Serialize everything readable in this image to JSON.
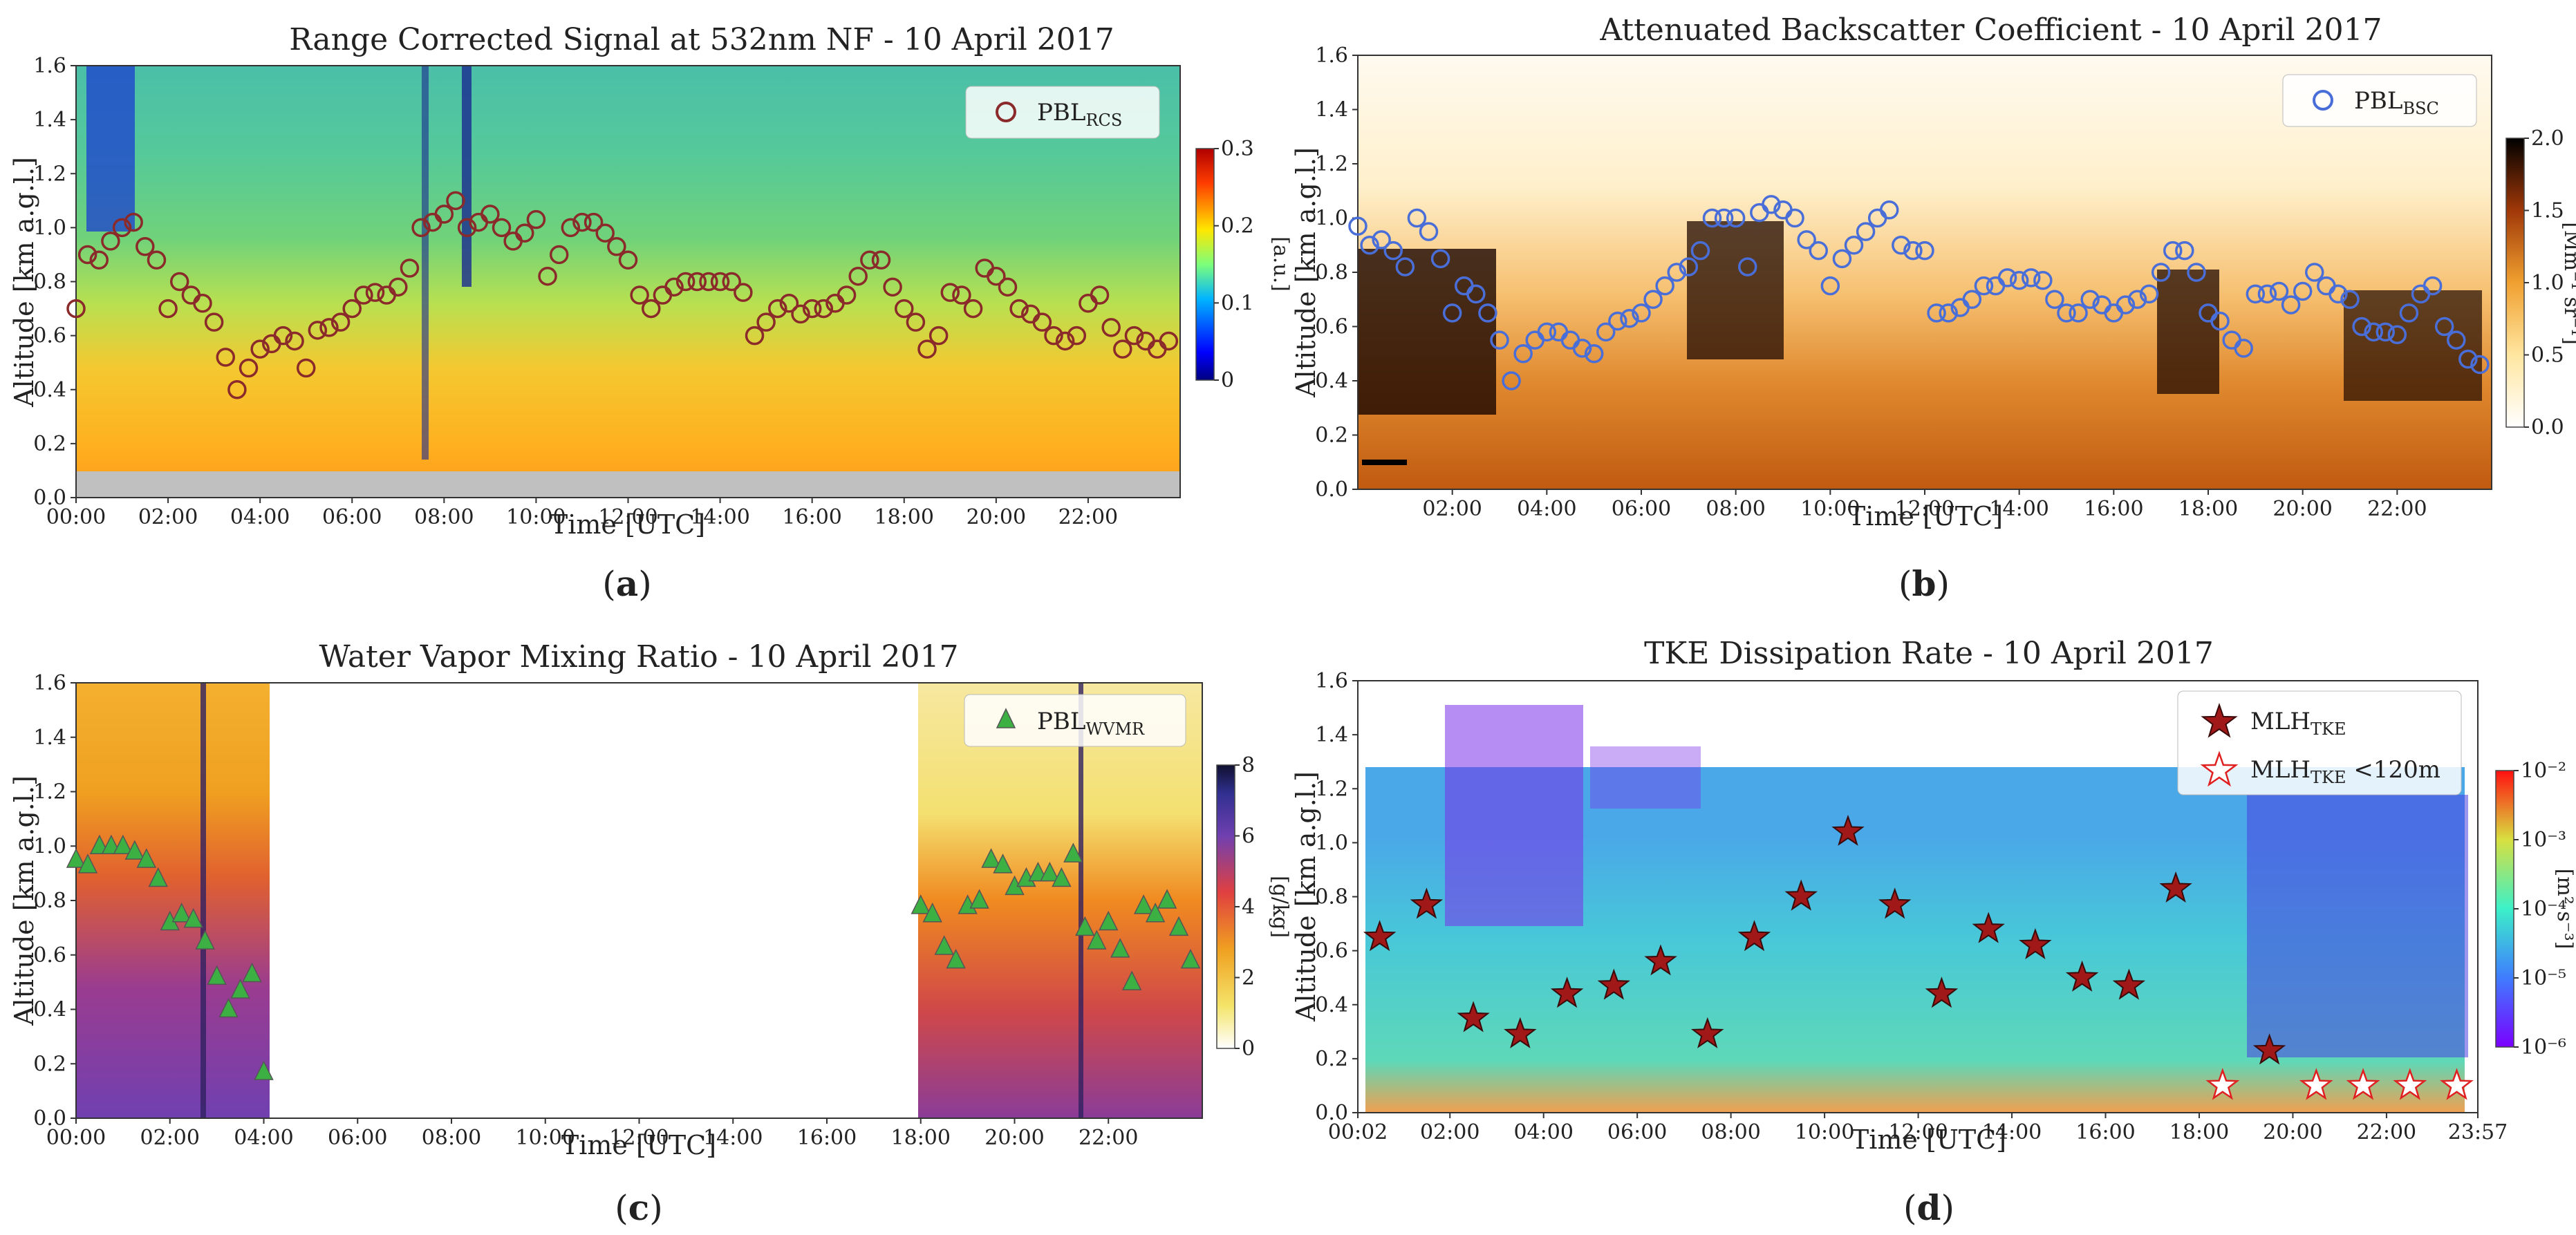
{
  "chart_data": [
    {
      "id": "a",
      "type": "heatmap",
      "title": "Range Corrected Signal at 532nm NF - 10 April 2017",
      "xlabel": "Time [UTC]",
      "ylabel": "Altitude [km a.g.l.]",
      "xlim": [
        0,
        24
      ],
      "ylim": [
        0,
        1.6
      ],
      "yticks": [
        "0.0",
        "0.2",
        "0.4",
        "0.6",
        "0.8",
        "1.0",
        "1.2",
        "1.4",
        "1.6"
      ],
      "xticks": [
        "00:00",
        "02:00",
        "04:00",
        "06:00",
        "08:00",
        "10:00",
        "12:00",
        "14:00",
        "16:00",
        "18:00",
        "20:00",
        "22:00"
      ],
      "xtick_hours": [
        0,
        2,
        4,
        6,
        8,
        10,
        12,
        14,
        16,
        18,
        20,
        22
      ],
      "legend": {
        "label": "PBL",
        "sub": "RCS",
        "position": "top-right",
        "marker": "circle",
        "color": "#8b2a2a"
      },
      "colorbar": {
        "label": "[a.u.]",
        "ticks": [
          "0",
          "0.1",
          "0.2",
          "0.3"
        ],
        "range": [
          0,
          0.3
        ],
        "colormap": "jet"
      },
      "series": [
        {
          "name": "PBL_RCS",
          "x": [
            0.0,
            0.25,
            0.5,
            0.75,
            1.0,
            1.25,
            1.5,
            1.75,
            2.0,
            2.25,
            2.5,
            2.75,
            3.0,
            3.25,
            3.5,
            3.75,
            4.0,
            4.25,
            4.5,
            4.75,
            5.0,
            5.25,
            5.5,
            5.75,
            6.0,
            6.25,
            6.5,
            6.75,
            7.0,
            7.25,
            7.5,
            7.75,
            8.0,
            8.25,
            8.5,
            8.75,
            9.0,
            9.25,
            9.5,
            9.75,
            10.0,
            10.25,
            10.5,
            10.75,
            11.0,
            11.25,
            11.5,
            11.75,
            12.0,
            12.25,
            12.5,
            12.75,
            13.0,
            13.25,
            13.5,
            13.75,
            14.0,
            14.25,
            14.5,
            14.75,
            15.0,
            15.25,
            15.5,
            15.75,
            16.0,
            16.25,
            16.5,
            16.75,
            17.0,
            17.25,
            17.5,
            17.75,
            18.0,
            18.25,
            18.5,
            18.75,
            19.0,
            19.25,
            19.5,
            19.75,
            20.0,
            20.25,
            20.5,
            20.75,
            21.0,
            21.25,
            21.5,
            21.75,
            22.0,
            22.25,
            22.5,
            22.75,
            23.0,
            23.25,
            23.5,
            23.75
          ],
          "y": [
            0.7,
            0.9,
            0.88,
            0.95,
            1.0,
            1.02,
            0.93,
            0.88,
            0.7,
            0.8,
            0.75,
            0.72,
            0.65,
            0.52,
            0.4,
            0.48,
            0.55,
            0.57,
            0.6,
            0.58,
            0.48,
            0.62,
            0.63,
            0.65,
            0.7,
            0.75,
            0.76,
            0.75,
            0.78,
            0.85,
            1.0,
            1.02,
            1.05,
            1.1,
            1.0,
            1.02,
            1.05,
            1.0,
            0.95,
            0.98,
            1.03,
            0.82,
            0.9,
            1.0,
            1.02,
            1.02,
            0.98,
            0.93,
            0.88,
            0.75,
            0.7,
            0.75,
            0.78,
            0.8,
            0.8,
            0.8,
            0.8,
            0.8,
            0.76,
            0.6,
            0.65,
            0.7,
            0.72,
            0.68,
            0.7,
            0.7,
            0.72,
            0.75,
            0.82,
            0.88,
            0.88,
            0.78,
            0.7,
            0.65,
            0.55,
            0.6,
            0.76,
            0.75,
            0.7,
            0.85,
            0.82,
            0.78,
            0.7,
            0.68,
            0.65,
            0.6,
            0.58,
            0.6,
            0.72,
            0.75,
            0.63,
            0.55,
            0.6,
            0.58,
            0.55,
            0.58
          ]
        }
      ]
    },
    {
      "id": "b",
      "type": "heatmap",
      "title": "Attenuated Backscatter Coefficient - 10 April 2017",
      "xlabel": "Time [UTC]",
      "ylabel": "Altitude [km a.g.l.]",
      "xlim": [
        0,
        24
      ],
      "ylim": [
        0,
        1.6
      ],
      "yticks": [
        "0.0",
        "0.2",
        "0.4",
        "0.6",
        "0.8",
        "1.0",
        "1.2",
        "1.4",
        "1.6"
      ],
      "xticks": [
        "02:00",
        "04:00",
        "06:00",
        "08:00",
        "10:00",
        "12:00",
        "14:00",
        "16:00",
        "18:00",
        "20:00",
        "22:00"
      ],
      "xtick_hours": [
        2,
        4,
        6,
        8,
        10,
        12,
        14,
        16,
        18,
        20,
        22
      ],
      "legend": {
        "label": "PBL",
        "sub": "BSC",
        "position": "top-right",
        "marker": "circle",
        "color": "#4a6ed8"
      },
      "colorbar": {
        "label": "[Mm⁻¹ sr⁻¹]",
        "ticks": [
          "0.0",
          "0.5",
          "1.0",
          "1.5",
          "2.0"
        ],
        "range": [
          0,
          2.0
        ],
        "colormap": "afmhot_r"
      },
      "series": [
        {
          "name": "PBL_BSC",
          "x": [
            0.0,
            0.25,
            0.5,
            0.75,
            1.0,
            1.25,
            1.5,
            1.75,
            2.0,
            2.25,
            2.5,
            2.75,
            3.0,
            3.25,
            3.5,
            3.75,
            4.0,
            4.25,
            4.5,
            4.75,
            5.0,
            5.25,
            5.5,
            5.75,
            6.0,
            6.25,
            6.5,
            6.75,
            7.0,
            7.25,
            7.5,
            7.75,
            8.0,
            8.25,
            8.5,
            8.75,
            9.0,
            9.25,
            9.5,
            9.75,
            10.0,
            10.25,
            10.5,
            10.75,
            11.0,
            11.25,
            11.5,
            11.75,
            12.0,
            12.25,
            12.5,
            12.75,
            13.0,
            13.25,
            13.5,
            13.75,
            14.0,
            14.25,
            14.5,
            14.75,
            15.0,
            15.25,
            15.5,
            15.75,
            16.0,
            16.25,
            16.5,
            16.75,
            17.0,
            17.25,
            17.5,
            17.75,
            18.0,
            18.25,
            18.5,
            18.75,
            19.0,
            19.25,
            19.5,
            19.75,
            20.0,
            20.25,
            20.5,
            20.75,
            21.0,
            21.25,
            21.5,
            21.75,
            22.0,
            22.25,
            22.5,
            22.75,
            23.0,
            23.25,
            23.5,
            23.75
          ],
          "y": [
            0.97,
            0.9,
            0.92,
            0.88,
            0.82,
            1.0,
            0.95,
            0.85,
            0.65,
            0.75,
            0.72,
            0.65,
            0.55,
            0.4,
            0.5,
            0.55,
            0.58,
            0.58,
            0.55,
            0.52,
            0.5,
            0.58,
            0.62,
            0.63,
            0.65,
            0.7,
            0.75,
            0.8,
            0.82,
            0.88,
            1.0,
            1.0,
            1.0,
            0.82,
            1.02,
            1.05,
            1.03,
            1.0,
            0.92,
            0.88,
            0.75,
            0.85,
            0.9,
            0.95,
            1.0,
            1.03,
            0.9,
            0.88,
            0.88,
            0.65,
            0.65,
            0.67,
            0.7,
            0.75,
            0.75,
            0.78,
            0.77,
            0.78,
            0.77,
            0.7,
            0.65,
            0.65,
            0.7,
            0.68,
            0.65,
            0.68,
            0.7,
            0.72,
            0.8,
            0.88,
            0.88,
            0.8,
            0.65,
            0.62,
            0.55,
            0.52,
            0.72,
            0.72,
            0.73,
            0.68,
            0.73,
            0.8,
            0.75,
            0.72,
            0.7,
            0.6,
            0.58,
            0.58,
            0.57,
            0.65,
            0.72,
            0.75,
            0.6,
            0.55,
            0.48,
            0.46
          ]
        }
      ]
    },
    {
      "id": "c",
      "type": "heatmap",
      "title": "Water Vapor Mixing Ratio - 10 April 2017",
      "xlabel": "Time [UTC]",
      "ylabel": "Altitude [km a.g.l.]",
      "xlim": [
        0,
        24
      ],
      "ylim": [
        0,
        1.6
      ],
      "yticks": [
        "0.0",
        "0.2",
        "0.4",
        "0.6",
        "0.8",
        "1.0",
        "1.2",
        "1.4",
        "1.6"
      ],
      "xticks": [
        "00:00",
        "02:00",
        "04:00",
        "06:00",
        "08:00",
        "10:00",
        "12:00",
        "14:00",
        "16:00",
        "18:00",
        "20:00",
        "22:00"
      ],
      "xtick_hours": [
        0,
        2,
        4,
        6,
        8,
        10,
        12,
        14,
        16,
        18,
        20,
        22
      ],
      "legend": {
        "label": "PBL",
        "sub": "WVMR",
        "position": "top-right",
        "marker": "triangle",
        "color": "#3cb043"
      },
      "colorbar": {
        "label": "[g/kg]",
        "ticks": [
          "0",
          "2",
          "4",
          "6",
          "8"
        ],
        "range": [
          0,
          8
        ],
        "colormap": "CMRmap_r"
      },
      "series": [
        {
          "name": "PBL_WVMR",
          "x": [
            0.0,
            0.25,
            0.5,
            0.75,
            1.0,
            1.25,
            1.5,
            1.75,
            2.0,
            2.25,
            2.5,
            2.75,
            3.0,
            3.25,
            3.5,
            3.75,
            4.0,
            18.0,
            18.25,
            18.5,
            18.75,
            19.0,
            19.25,
            19.5,
            19.75,
            20.0,
            20.25,
            20.5,
            20.75,
            21.0,
            21.25,
            21.5,
            21.75,
            22.0,
            22.25,
            22.5,
            22.75,
            23.0,
            23.25,
            23.5,
            23.75
          ],
          "y": [
            0.95,
            0.93,
            1.0,
            1.0,
            1.0,
            0.98,
            0.95,
            0.88,
            0.72,
            0.75,
            0.73,
            0.65,
            0.52,
            0.4,
            0.47,
            0.53,
            0.17,
            0.78,
            0.75,
            0.63,
            0.58,
            0.78,
            0.8,
            0.95,
            0.93,
            0.85,
            0.88,
            0.9,
            0.9,
            0.88,
            0.97,
            0.7,
            0.65,
            0.72,
            0.62,
            0.5,
            0.78,
            0.75,
            0.8,
            0.7,
            0.58
          ]
        }
      ]
    },
    {
      "id": "d",
      "type": "heatmap",
      "title": "TKE Dissipation Rate - 10 April 2017",
      "xlabel": "Time [UTC]",
      "ylabel": "Altitude [km a.g.l.]",
      "xlim": [
        0.033,
        23.95
      ],
      "ylim": [
        0,
        1.6
      ],
      "yticks": [
        "0.0",
        "0.2",
        "0.4",
        "0.6",
        "0.8",
        "1.0",
        "1.2",
        "1.4",
        "1.6"
      ],
      "xticks": [
        "00:02",
        "02:00",
        "04:00",
        "06:00",
        "08:00",
        "10:00",
        "12:00",
        "14:00",
        "16:00",
        "18:00",
        "20:00",
        "22:00",
        "23:57"
      ],
      "xtick_hours": [
        0.033,
        2,
        4,
        6,
        8,
        10,
        12,
        14,
        16,
        18,
        20,
        22,
        23.95
      ],
      "legend": {
        "entries": [
          {
            "label": "MLH",
            "sub": "TKE",
            "extra": "",
            "marker": "star-filled"
          },
          {
            "label": "MLH",
            "sub": "TKE",
            "extra": " <120m",
            "marker": "star-open"
          }
        ],
        "position": "top-right"
      },
      "colorbar": {
        "label": "[m² s⁻³]",
        "ticks": [
          "10⁻⁶",
          "10⁻⁵",
          "10⁻⁴",
          "10⁻³",
          "10⁻²"
        ],
        "range": [
          -6,
          -2
        ],
        "colormap": "rainbow"
      },
      "series": [
        {
          "name": "MLH_TKE",
          "x": [
            0.5,
            1.5,
            2.5,
            3.5,
            4.5,
            5.5,
            6.5,
            7.5,
            8.5,
            9.5,
            10.5,
            11.5,
            12.5,
            13.5,
            14.5,
            15.5,
            16.5,
            17.5,
            19.5
          ],
          "y": [
            0.65,
            0.77,
            0.35,
            0.29,
            0.44,
            0.47,
            0.56,
            0.29,
            0.65,
            0.8,
            1.04,
            0.77,
            0.44,
            0.68,
            0.62,
            0.5,
            0.47,
            0.83,
            0.23
          ]
        },
        {
          "name": "MLH_TKE <120m",
          "x": [
            18.5,
            20.5,
            21.5,
            22.5,
            23.5
          ],
          "y": [
            0.1,
            0.1,
            0.1,
            0.1,
            0.1
          ]
        }
      ]
    }
  ],
  "captions": [
    "a",
    "b",
    "c",
    "d"
  ]
}
